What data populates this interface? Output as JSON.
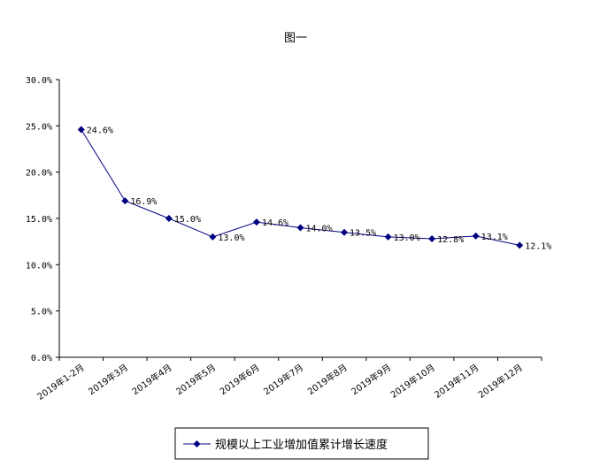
{
  "chart_data": {
    "type": "line",
    "title": "图一",
    "xlabel": "",
    "ylabel": "",
    "ylim": [
      0,
      30
    ],
    "y_tick_labels": [
      "0.0%",
      "5.0%",
      "10.0%",
      "15.0%",
      "20.0%",
      "25.0%",
      "30.0%"
    ],
    "categories": [
      "2019年1-2月",
      "2019年3月",
      "2019年4月",
      "2019年5月",
      "2019年6月",
      "2019年7月",
      "2019年8月",
      "2019年9月",
      "2019年10月",
      "2019年11月",
      "2019年12月"
    ],
    "series": [
      {
        "name": "规模以上工业增加值累计增长速度",
        "values": [
          24.6,
          16.9,
          15.0,
          13.0,
          14.6,
          14.0,
          13.5,
          13.0,
          12.8,
          13.1,
          12.1
        ],
        "labels": [
          "24.6%",
          "16.9%",
          "15.0%",
          "13.0%",
          "14.6%",
          "14.0%",
          "13.5%",
          "13.0%",
          "12.8%",
          "13.1%",
          "12.1%"
        ],
        "color": "#000080"
      }
    ],
    "grid": false,
    "legend_position": "bottom-center"
  }
}
